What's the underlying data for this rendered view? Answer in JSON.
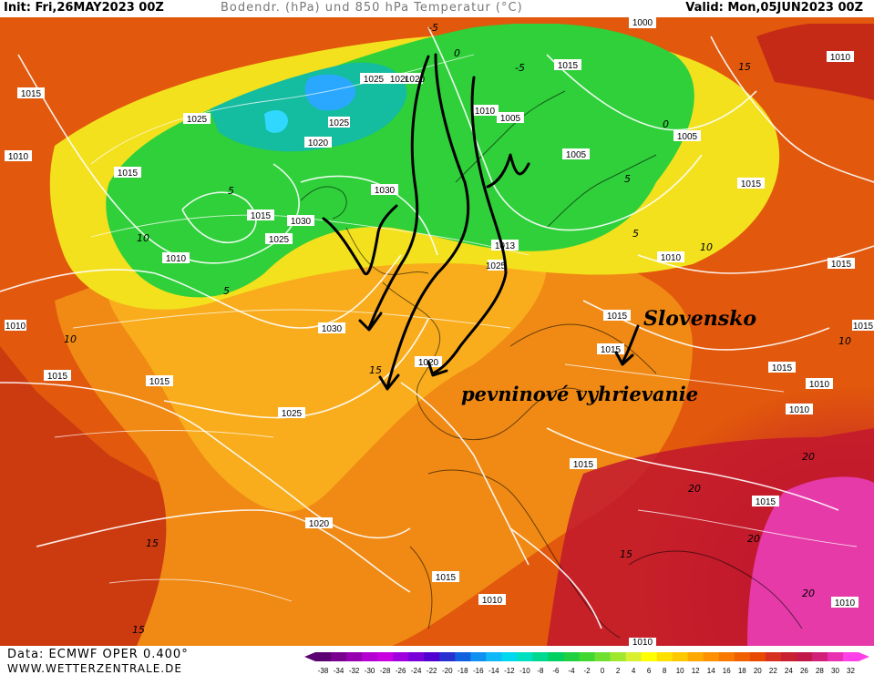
{
  "header": {
    "init": "Init: Fri,26MAY2023 00Z",
    "title": "Bodendr. (hPa) und 850 hPa Temperatur (°C)",
    "valid": "Valid: Mon,05JUN2023 00Z"
  },
  "footer": {
    "data_source": "Data: ECMWF OPER 0.400°",
    "website": "WWW.WETTERZENTRALE.DE"
  },
  "annotations": {
    "slovensko": "Slovensko",
    "land_heating": "pevninové vyhrievanie"
  },
  "colorbar": {
    "ticks": [
      "-38",
      "-34",
      "-32",
      "-30",
      "-28",
      "-26",
      "-24",
      "-22",
      "-20",
      "-18",
      "-16",
      "-14",
      "-12",
      "-10",
      "-8",
      "-6",
      "-4",
      "-2",
      "0",
      "2",
      "4",
      "6",
      "8",
      "10",
      "12",
      "14",
      "16",
      "18",
      "20",
      "22",
      "24",
      "26",
      "28",
      "30",
      "32"
    ],
    "colors": [
      "#5a0070",
      "#7a0090",
      "#9600b0",
      "#b400d0",
      "#c800e0",
      "#a000e0",
      "#7800d8",
      "#5000d0",
      "#2830d0",
      "#1060e0",
      "#1090f0",
      "#10b8f8",
      "#00d8f0",
      "#00e0c0",
      "#00d890",
      "#00d060",
      "#20d040",
      "#40d830",
      "#70e030",
      "#a0e830",
      "#d8f030",
      "#ffff00",
      "#ffe000",
      "#ffc800",
      "#ffa800",
      "#ff9000",
      "#f87800",
      "#f06000",
      "#e84800",
      "#d83020",
      "#c82030",
      "#c01848",
      "#d02078",
      "#e830b0",
      "#ff40e8"
    ]
  },
  "isobar_labels": [
    "1015",
    "1010",
    "1025",
    "1015",
    "1010",
    "1020",
    "1025",
    "1025",
    "1020",
    "1030",
    "1015",
    "1030",
    "1025",
    "1010",
    "1015",
    "1020",
    "1030",
    "1015",
    "1025",
    "1020",
    "1015",
    "1010",
    "1000",
    "1015",
    "1005",
    "1005",
    "1005",
    "1015",
    "1010",
    "1015",
    "1015",
    "1015",
    "1015",
    "1010",
    "1010",
    "1015",
    "1015",
    "1010",
    "1010",
    "1010",
    "1010",
    "1015",
    "1020",
    "1013",
    "1025"
  ],
  "isotherm_labels": [
    "-5",
    "0",
    "5",
    "10",
    "15",
    "20",
    "-5",
    "0",
    "5",
    "10",
    "15",
    "20",
    "15",
    "10",
    "5",
    "20",
    "15",
    "10",
    "5",
    "15",
    "20"
  ],
  "chart_data": {
    "type": "map",
    "title": "Bodendr. (hPa) und 850 hPa Temperatur (°C)",
    "init_time": "Fri,26MAY2023 00Z",
    "valid_time": "Mon,05JUN2023 00Z",
    "model": "ECMWF OPER 0.400°",
    "colorbar_range_celsius": [
      -38,
      32
    ],
    "fields": [
      "surface pressure isobars (hPa)",
      "850 hPa temperature (°C)"
    ]
  }
}
